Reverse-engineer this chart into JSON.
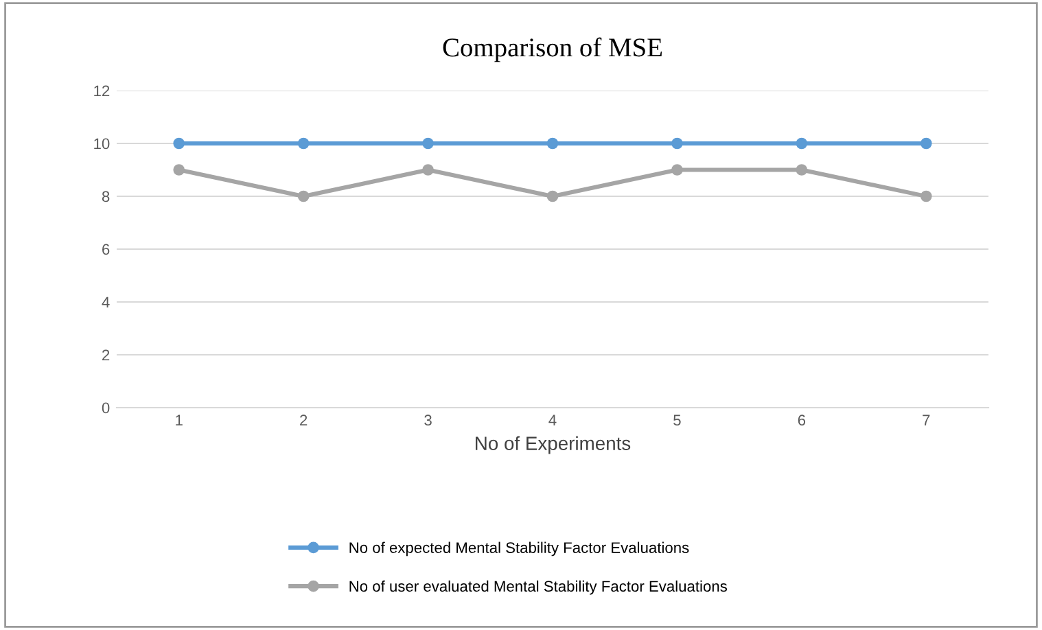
{
  "chart_data": {
    "type": "line",
    "title": "Comparison of MSE",
    "xlabel": "No of Experiments",
    "categories": [
      "1",
      "2",
      "3",
      "4",
      "5",
      "6",
      "7"
    ],
    "series": [
      {
        "name": "No of expected Mental Stability Factor Evaluations",
        "color": "#5b9bd5",
        "values": [
          10,
          10,
          10,
          10,
          10,
          10,
          10
        ]
      },
      {
        "name": "No of user evaluated Mental Stability Factor Evaluations",
        "color": "#a5a5a5",
        "values": [
          9,
          8,
          9,
          8,
          9,
          9,
          8
        ]
      }
    ],
    "ylim": [
      0,
      12
    ],
    "yticks": [
      0,
      2,
      4,
      6,
      8,
      10,
      12
    ],
    "grid": "y",
    "legend": "bottom",
    "marker": "circle",
    "line_style": "solid"
  }
}
